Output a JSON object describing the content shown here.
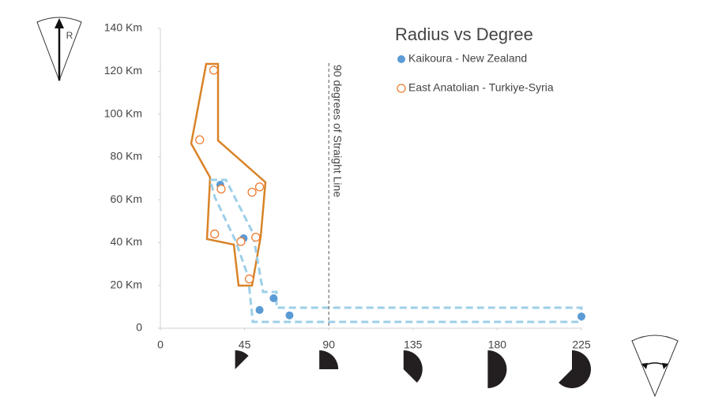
{
  "chart_data": {
    "type": "scatter",
    "title": "Radius vs Degree",
    "xlim": [
      0,
      225
    ],
    "xticks": [
      0,
      45,
      90,
      135,
      180,
      225
    ],
    "ylim": [
      0,
      140
    ],
    "yticks": [
      0,
      {
        "value": 20,
        "label": "20 Km"
      },
      {
        "value": 40,
        "label": "40 Km"
      },
      {
        "value": 60,
        "label": "60 Km"
      },
      {
        "value": 80,
        "label": "80 Km"
      },
      {
        "value": 100,
        "label": "100 Km"
      },
      {
        "value": 120,
        "label": "120 Km"
      },
      {
        "value": 140,
        "label": "140 Km"
      }
    ],
    "series": [
      {
        "name": "Kaikoura - New Zealand",
        "color": "#5b9bd5",
        "marker": "filled",
        "x": [
          32,
          44.5,
          53,
          60.5,
          69,
          225
        ],
        "values": [
          67,
          42,
          8.5,
          14,
          6,
          5.5
        ]
      },
      {
        "name": "East Anatolian - Turkiye-Syria",
        "color": "#ed7d31",
        "marker": "hollow",
        "x": [
          28.5,
          21,
          32.5,
          49,
          53,
          29,
          43,
          51,
          47.5
        ],
        "values": [
          120.5,
          88,
          65,
          63.5,
          66,
          44,
          40.5,
          42.5,
          23
        ]
      }
    ],
    "reference_line": {
      "x": 90,
      "label": "90 degrees of Straight Line"
    },
    "radius_icon_label": "R",
    "legend": "top-right"
  }
}
